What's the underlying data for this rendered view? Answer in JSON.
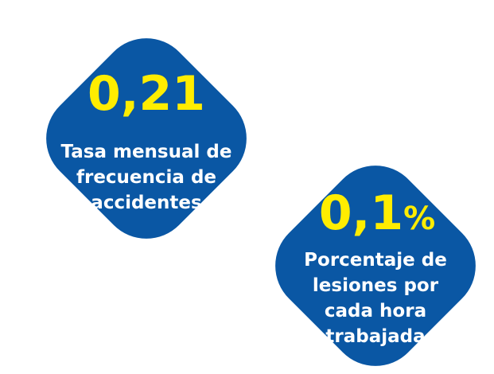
{
  "items": [
    {
      "value": "0,21",
      "label_lines": [
        "Tasa mensual de",
        "frecuencia de",
        "accidentes"
      ]
    },
    {
      "value": "0,1",
      "unit": "%",
      "label_lines": [
        "Porcentaje de",
        "lesiones por",
        "cada hora",
        "trabajada"
      ]
    }
  ]
}
